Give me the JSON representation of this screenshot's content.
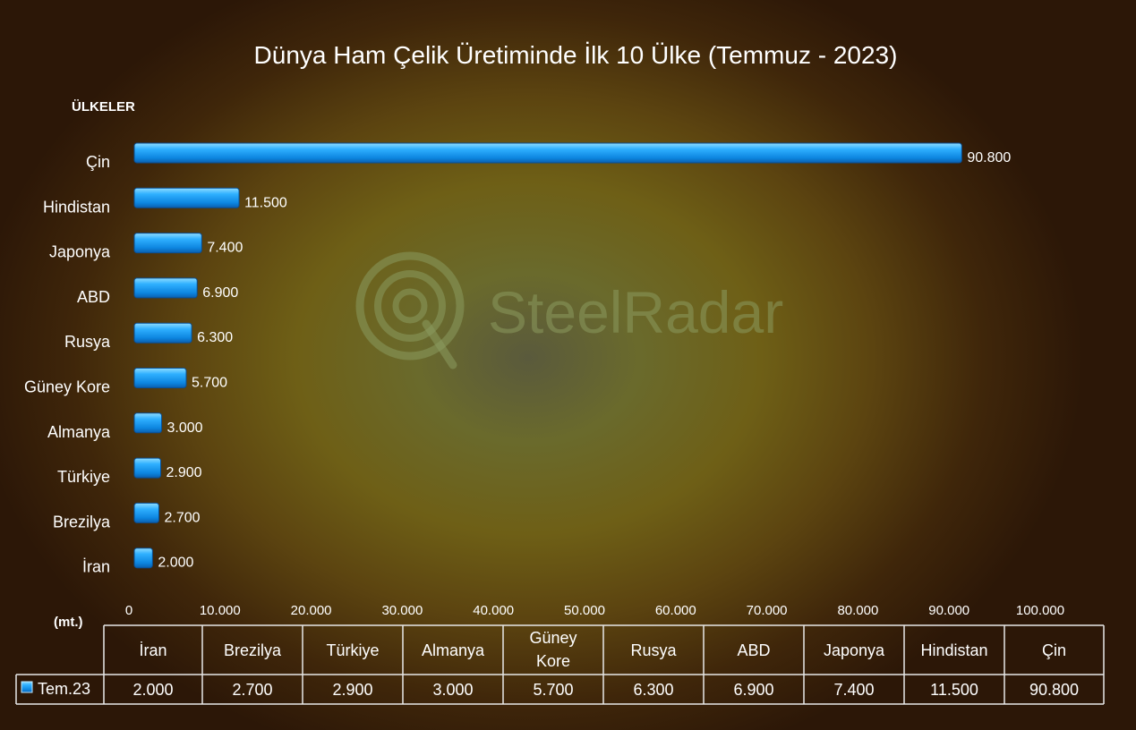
{
  "chart_data": {
    "type": "bar",
    "orientation": "horizontal",
    "title": "Dünya Ham Çelik Üretiminde İlk 10 Ülke (Temmuz - 2023)",
    "ylabel": "ÜLKELER",
    "xlabel": "(mt.)",
    "categories": [
      "Çin",
      "Hindistan",
      "Japonya",
      "ABD",
      "Rusya",
      "Güney Kore",
      "Almanya",
      "Türkiye",
      "Brezilya",
      "İran"
    ],
    "values": [
      90800,
      11500,
      7400,
      6900,
      6300,
      5700,
      3000,
      2900,
      2700,
      2000
    ],
    "value_labels": [
      "90.800",
      "11.500",
      "7.400",
      "6.900",
      "6.300",
      "5.700",
      "3.000",
      "2.900",
      "2.700",
      "2.000"
    ],
    "series": [
      {
        "name": "Tem.23",
        "values": [
          90800,
          11500,
          7400,
          6900,
          6300,
          5700,
          3000,
          2900,
          2700,
          2000
        ]
      }
    ],
    "xlim": [
      0,
      100000
    ],
    "x_ticks": [
      "0",
      "10.000",
      "20.000",
      "30.000",
      "40.000",
      "50.000",
      "60.000",
      "70.000",
      "80.000",
      "90.000",
      "100.000"
    ],
    "grid": false,
    "bar_color": "#1e9df0",
    "data_table": {
      "legend_label": "Tem.23",
      "headers": [
        "İran",
        "Brezilya",
        "Türkiye",
        "Almanya",
        "Güney Kore",
        "Rusya",
        "ABD",
        "Japonya",
        "Hindistan",
        "Çin"
      ],
      "values": [
        "2.000",
        "2.700",
        "2.900",
        "3.000",
        "5.700",
        "6.300",
        "6.900",
        "7.400",
        "11.500",
        "90.800"
      ]
    }
  },
  "watermark": {
    "text": "SteelRadar",
    "icon": "radar-icon"
  }
}
